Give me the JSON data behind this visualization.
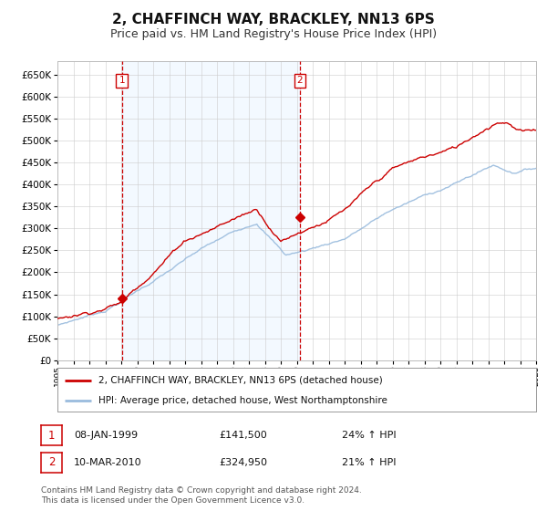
{
  "title": "2, CHAFFINCH WAY, BRACKLEY, NN13 6PS",
  "subtitle": "Price paid vs. HM Land Registry's House Price Index (HPI)",
  "title_fontsize": 11,
  "subtitle_fontsize": 9,
  "bg_color": "#ffffff",
  "plot_bg_color": "#ffffff",
  "grid_color": "#cccccc",
  "legend_label_red": "2, CHAFFINCH WAY, BRACKLEY, NN13 6PS (detached house)",
  "legend_label_blue": "HPI: Average price, detached house, West Northamptonshire",
  "red_color": "#cc0000",
  "blue_color": "#99bbdd",
  "marker1_date_x": 1999.04,
  "marker1_y": 141500,
  "marker1_label": "1",
  "marker2_date_x": 2010.19,
  "marker2_y": 324950,
  "marker2_label": "2",
  "vline1_x": 1999.04,
  "vline2_x": 2010.19,
  "vline_color": "#cc0000",
  "shade_color": "#ddeeff",
  "shade_alpha": 0.35,
  "ylim": [
    0,
    680000
  ],
  "yticks": [
    0,
    50000,
    100000,
    150000,
    200000,
    250000,
    300000,
    350000,
    400000,
    450000,
    500000,
    550000,
    600000,
    650000
  ],
  "xlim_start": 1995,
  "xlim_end": 2025,
  "footer_text": "Contains HM Land Registry data © Crown copyright and database right 2024.\nThis data is licensed under the Open Government Licence v3.0.",
  "annotation1": {
    "label": "1",
    "date": "08-JAN-1999",
    "price": "£141,500",
    "pct": "24% ↑ HPI"
  },
  "annotation2": {
    "label": "2",
    "date": "10-MAR-2010",
    "price": "£324,950",
    "pct": "21% ↑ HPI"
  }
}
